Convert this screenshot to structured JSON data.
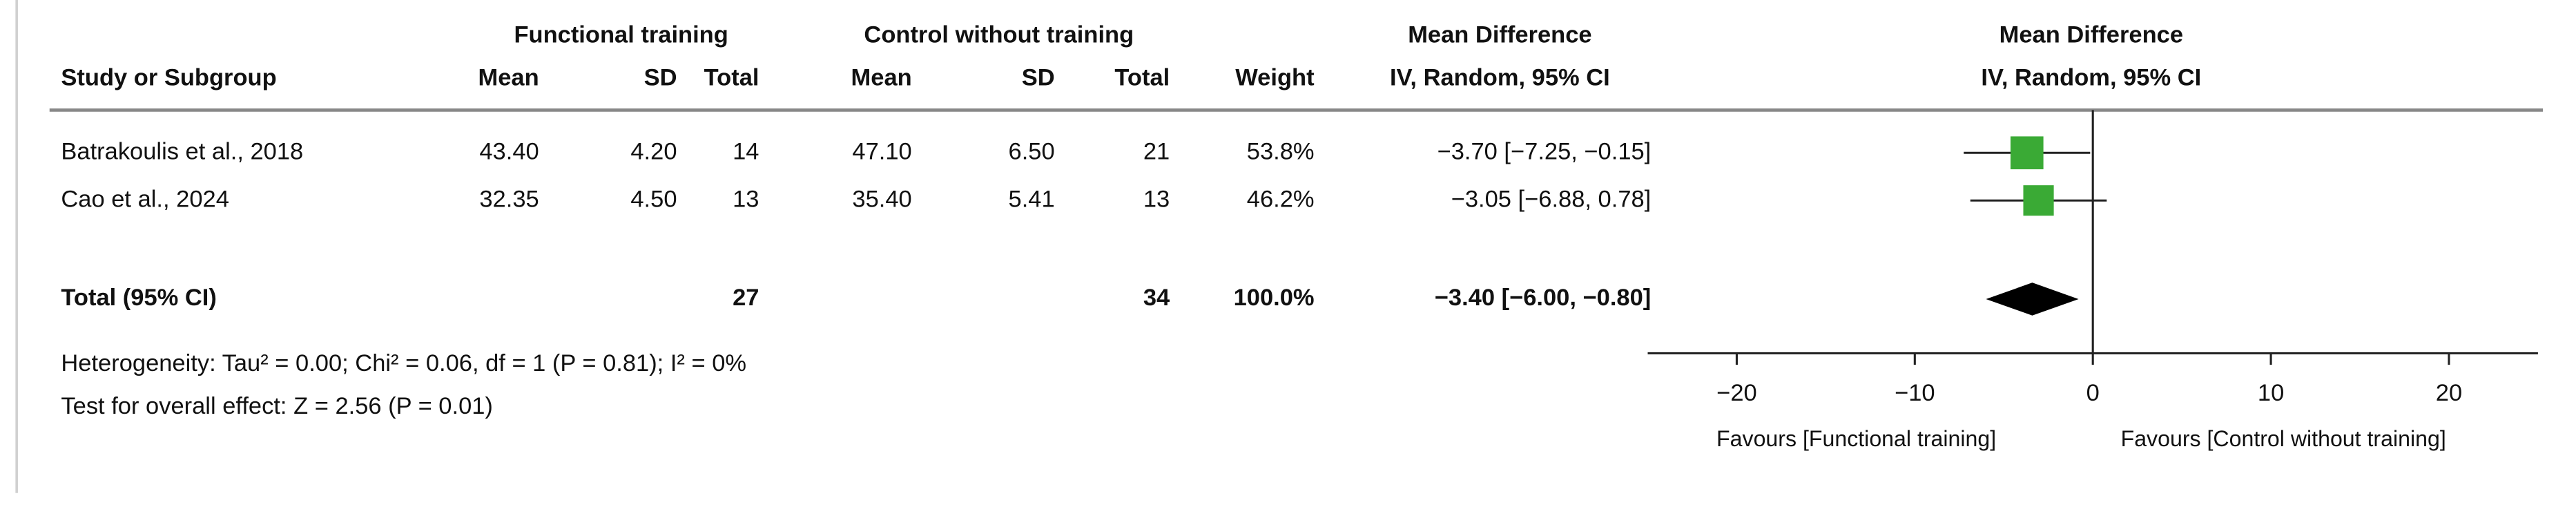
{
  "chart_data": {
    "type": "forest",
    "group_headers": [
      "Functional training",
      "Control without training",
      "Mean Difference"
    ],
    "columns": [
      "Study or Subgroup",
      "Mean",
      "SD",
      "Total",
      "Mean",
      "SD",
      "Total",
      "Weight",
      "IV, Random, 95% CI"
    ],
    "rows": [
      [
        "Batrakoulis et al., 2018",
        "43.40",
        "4.20",
        "14",
        "47.10",
        "6.50",
        "21",
        "53.8%",
        "−3.70 [−7.25, −0.15]"
      ],
      [
        "Cao et al., 2024",
        "32.35",
        "4.50",
        "13",
        "35.40",
        "5.41",
        "13",
        "46.2%",
        "−3.05 [−6.88,  0.78]"
      ],
      [
        "Total (95% CI)",
        null,
        null,
        "27",
        null,
        null,
        "34",
        "100.0%",
        "−3.40 [−6.00, −0.80]"
      ]
    ],
    "plot_header": [
      "Mean Difference",
      "IV, Random, 95% CI"
    ],
    "estimates": [
      -3.7,
      -3.05
    ],
    "ci_low": [
      -7.25,
      -6.88
    ],
    "ci_high": [
      -0.15,
      0.78
    ],
    "weights": [
      53.8,
      46.2
    ],
    "total": {
      "estimate": -3.4,
      "ci_low": -6.0,
      "ci_high": -0.8
    },
    "color": "#3aaa35",
    "total_color": "#000000",
    "xlim": [
      -25,
      25
    ],
    "xticks": [
      {
        "value": -20,
        "label": "−20"
      },
      {
        "value": -10,
        "label": "−10"
      },
      0,
      10,
      20
    ],
    "favours": [
      "Favours [Functional training]",
      "Favours [Control without training]"
    ],
    "footnotes": [
      "Heterogeneity: Tau² = 0.00; Chi² = 0.06, df = 1 (P = 0.81); I² = 0%",
      "Test for overall effect: Z = 2.56 (P = 0.01)"
    ]
  }
}
